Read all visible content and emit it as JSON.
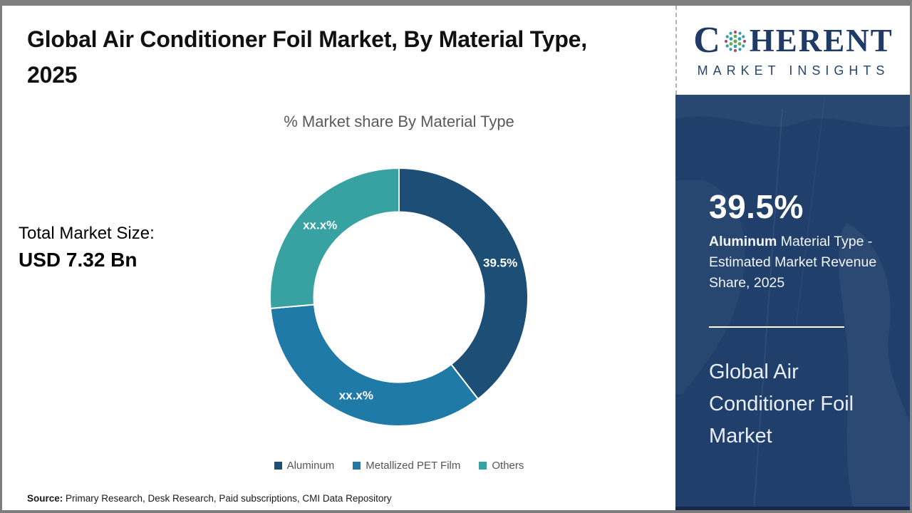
{
  "header": {
    "title": "Global Air Conditioner Foil Market, By Material Type, 2025"
  },
  "chart_data": {
    "type": "pie",
    "subtype": "donut",
    "title": "% Market share By Material Type",
    "categories": [
      "Aluminum",
      "Metallized PET Film",
      "Others"
    ],
    "values": [
      39.5,
      34.1,
      26.4
    ],
    "slice_labels": [
      "39.5%",
      "xx.x%",
      "xx.x%"
    ],
    "colors": [
      "#1d4e76",
      "#1f7aa8",
      "#38a2a2"
    ],
    "start_angle_deg": 0,
    "inner_radius_ratio": 0.66,
    "legend_position": "bottom",
    "label_color": "#ffffff"
  },
  "left_panel": {
    "total_label": "Total Market Size:",
    "total_value": "USD 7.32 Bn"
  },
  "footer": {
    "source_label": "Source:",
    "source_text": " Primary Research, Desk Research, Paid subscriptions, CMI Data Repository"
  },
  "brand": {
    "logo_c": "C",
    "logo_rest": "HERENT",
    "logo_sub": "MARKET INSIGHTS",
    "navy": "#1f3a66"
  },
  "sidebar": {
    "bg": "#20406b",
    "stat_value": "39.5%",
    "stat_bold": "Aluminum",
    "stat_rest": " Material Type - Estimated Market Revenue Share, 2025",
    "market_name": "Global Air Conditioner Foil Market"
  }
}
